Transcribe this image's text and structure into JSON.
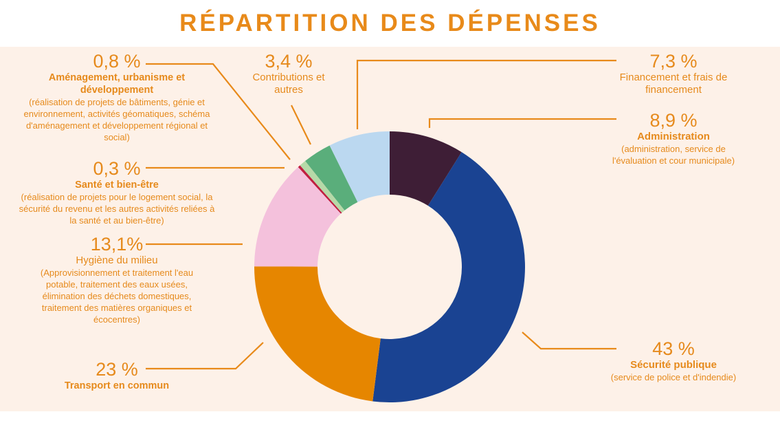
{
  "chart_data": {
    "type": "pie",
    "variant": "donut",
    "title": "RÉPARTITION DES DÉPENSES",
    "unit": "%",
    "slices": [
      {
        "pct_label": "8,9 %",
        "value": 8.9,
        "name": "Administration",
        "desc": "(administration, service de l'évaluation et cour municipale)",
        "color": "#3e1e36"
      },
      {
        "pct_label": "43 %",
        "value": 43,
        "name": "Sécurité publique",
        "desc": "(service de police et d'indendie)",
        "color": "#1a4392"
      },
      {
        "pct_label": "23 %",
        "value": 23,
        "name": "Transport en commun",
        "desc": "",
        "color": "#e68600"
      },
      {
        "pct_label": "13,1%",
        "value": 13.1,
        "name": "Hygiène du milieu",
        "desc": "(Approvisionnement et traitement l'eau potable, traitement des eaux usées, élimination des déchets domestiques, traitement des matières organiques et écocentres)",
        "color": "#f4c1dc"
      },
      {
        "pct_label": "0,3 %",
        "value": 0.3,
        "name": "Santé et bien-être",
        "desc": "(réalisation de projets pour le logement social, la sécurité du revenu et les autres activités reliées à la santé et au bien-être)",
        "color": "#c01f40"
      },
      {
        "pct_label": "0,8 %",
        "value": 0.8,
        "name": "Aménagement, urbanisme et développement",
        "desc": "(réalisation de projets de bâtiments, génie et environnement, activités géomatiques, schéma d'aménagement et développement régional et social)",
        "color": "#b6d9a8"
      },
      {
        "pct_label": "3,4 %",
        "value": 3.4,
        "name": "Contributions et autres",
        "desc": "",
        "color": "#5aae7b"
      },
      {
        "pct_label": "7,3 %",
        "value": 7.3,
        "name": "Financement et frais de financement",
        "desc": "",
        "color": "#bbd8f0"
      }
    ]
  },
  "colors": {
    "accent": "#e88a1a",
    "background": "#fdf1e8"
  }
}
